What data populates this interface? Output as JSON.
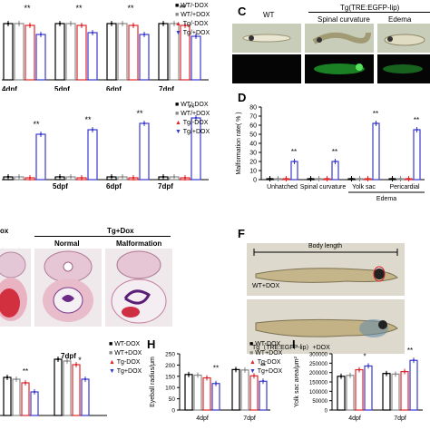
{
  "colors": {
    "wt_minus": "#000000",
    "wt_plus": "#8a8a8a",
    "tg_minus": "#e0282d",
    "tg_plus": "#3a3ad0"
  },
  "legend_top": [
    "WT/-DOX",
    "WT/+DOX",
    "Tg/-DOX",
    "Tg/+DOX"
  ],
  "legend_b": [
    "WT/-DOX",
    "WT/+DOX",
    "Tg/-DOX",
    "Tg/+DOX"
  ],
  "legend_g": [
    "WT-DOX",
    "WT+DOX",
    "Tg-DOX",
    "Tg+DOX"
  ],
  "legend_h": [
    "WT-DOX",
    "WT+DOX",
    "Tg-DOX",
    "Tg+DOX"
  ],
  "panel_a_days": [
    "4dpf",
    "5dpf",
    "6dpf",
    "7dpf"
  ],
  "panel_b_days": [
    "5dpf",
    "6dpf",
    "7dpf"
  ],
  "sig": "**",
  "sig_single": "*",
  "panel_c": {
    "label": "C",
    "wt": "WT",
    "tg": "Tg(TRE:EGFP-lip)",
    "spinal": "Spinal curvature",
    "edema": "Edema"
  },
  "panel_d": {
    "label": "D",
    "ylabel": "Malformation rate( % )",
    "yticks": [
      "0",
      "10",
      "20",
      "30",
      "40",
      "50",
      "60",
      "70",
      "80"
    ],
    "categories": [
      "Unhatched",
      "Spinal curvature",
      "Yolk sac",
      "Pericardial"
    ],
    "edema_label": "Edema"
  },
  "panel_e": {
    "dox": "ox",
    "tgdox": "Tg+Dox",
    "normal": "Normal",
    "malformation": "Malformation"
  },
  "panel_f": {
    "label": "F",
    "body_length": "Body length",
    "wt": "WT+DOX",
    "tg": "Tg（TRE:EGFP-lip）+DOX"
  },
  "panel_g": {
    "days": [
      "7dpf"
    ]
  },
  "panel_h": {
    "label": "H",
    "ylabel": "Eyeball radius/μm",
    "yticks": [
      "0",
      "50",
      "100",
      "150",
      "200",
      "250"
    ],
    "days": [
      "4dpf",
      "7dpf"
    ]
  },
  "panel_i": {
    "label": "I",
    "ylabel": "Yolk sac area/μm²",
    "yticks": [
      "0",
      "50000",
      "100000",
      "150000",
      "200000",
      "250000",
      "300000"
    ],
    "days": [
      "4dpf",
      "7dpf"
    ]
  },
  "chart_data": [
    {
      "type": "bar",
      "categories": [
        "Unhatched",
        "Spinal curvature",
        "Yolk sac",
        "Pericardial"
      ],
      "series": [
        {
          "name": "WT/-DOX",
          "values": [
            1,
            1,
            1,
            1
          ]
        },
        {
          "name": "WT/+DOX",
          "values": [
            1,
            1,
            1,
            1
          ]
        },
        {
          "name": "Tg/-DOX",
          "values": [
            1,
            1,
            1,
            1
          ]
        },
        {
          "name": "Tg/+DOX",
          "values": [
            20,
            20,
            62,
            55
          ]
        }
      ],
      "ylabel": "Malformation rate( % )",
      "ylim": [
        0,
        80
      ]
    },
    {
      "type": "bar",
      "categories": [
        "4dpf",
        "7dpf"
      ],
      "series": [
        {
          "name": "WT-DOX",
          "values": [
            158,
            180
          ]
        },
        {
          "name": "WT+DOX",
          "values": [
            155,
            178
          ]
        },
        {
          "name": "Tg-DOX",
          "values": [
            143,
            152
          ]
        },
        {
          "name": "Tg+DOX",
          "values": [
            118,
            128
          ]
        }
      ],
      "ylabel": "Eyeball radius/μm",
      "ylim": [
        0,
        250
      ]
    },
    {
      "type": "bar",
      "categories": [
        "4dpf",
        "7dpf"
      ],
      "series": [
        {
          "name": "WT-DOX",
          "values": [
            180000,
            195000
          ]
        },
        {
          "name": "WT+DOX",
          "values": [
            185000,
            192000
          ]
        },
        {
          "name": "Tg-DOX",
          "values": [
            215000,
            205000
          ]
        },
        {
          "name": "Tg+DOX",
          "values": [
            235000,
            265000
          ]
        }
      ],
      "ylabel": "Yolk sac area/μm²",
      "ylim": [
        0,
        300000
      ]
    }
  ]
}
